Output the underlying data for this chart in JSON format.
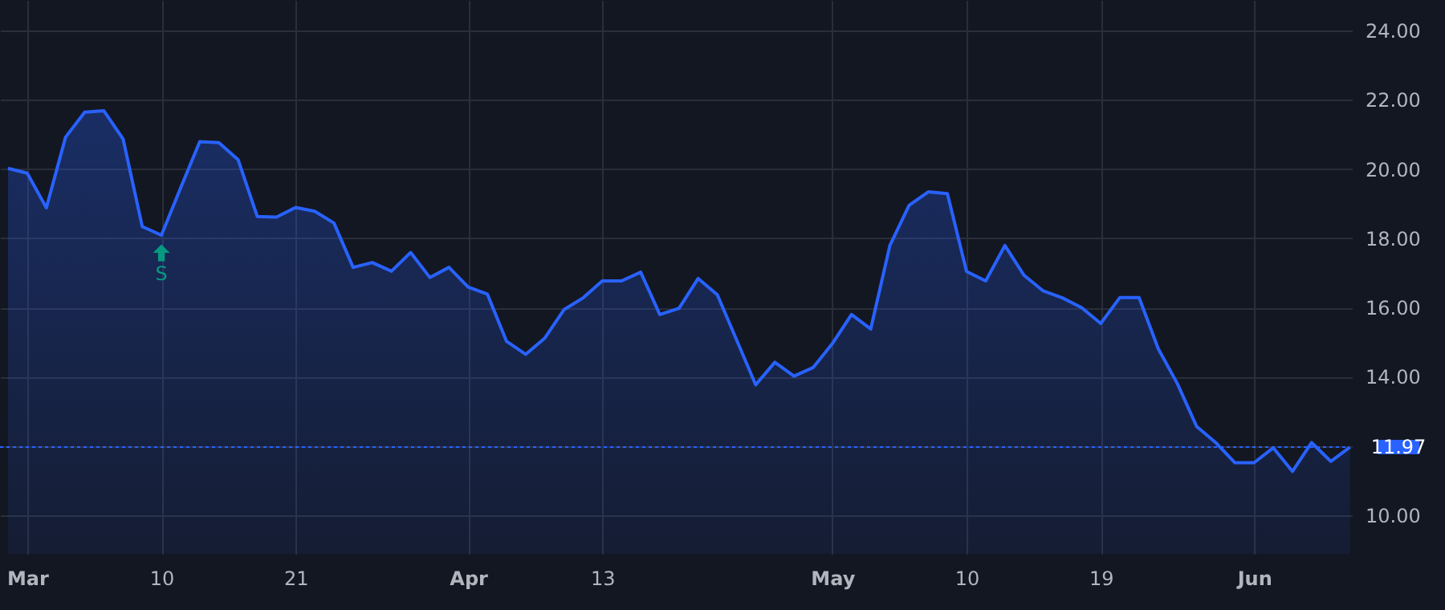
{
  "chart_data": {
    "type": "area",
    "categories": [
      null,
      "Mar",
      null,
      null,
      null,
      null,
      null,
      null,
      "10",
      null,
      null,
      null,
      null,
      null,
      null,
      "21",
      null,
      null,
      null,
      null,
      null,
      null,
      null,
      null,
      "Apr",
      null,
      null,
      null,
      null,
      null,
      null,
      "13",
      null,
      null,
      null,
      null,
      null,
      null,
      null,
      null,
      null,
      null,
      null,
      "May",
      null,
      null,
      null,
      null,
      null,
      null,
      "10",
      null,
      null,
      null,
      null,
      null,
      null,
      "19",
      null,
      null,
      null,
      null,
      null,
      null,
      null,
      "Jun",
      null,
      null,
      null,
      null,
      null
    ],
    "series": [
      {
        "color": "#2962ff",
        "values": [
          20.02,
          19.88,
          18.88,
          20.92,
          21.64,
          21.68,
          20.87,
          18.34,
          18.09,
          19.45,
          20.79,
          20.76,
          20.27,
          18.63,
          18.61,
          18.89,
          18.78,
          18.44,
          17.16,
          17.3,
          17.05,
          17.59,
          16.87,
          17.16,
          16.59,
          16.39,
          15.03,
          14.65,
          15.12,
          15.94,
          16.28,
          16.77,
          16.77,
          17.02,
          15.8,
          15.98,
          16.84,
          16.37,
          15.07,
          13.77,
          14.42,
          14.02,
          14.27,
          14.96,
          15.8,
          15.38,
          17.79,
          18.95,
          19.34,
          19.29,
          17.04,
          16.77,
          17.79,
          16.93,
          16.48,
          16.28,
          16.0,
          15.54,
          16.29,
          16.29,
          14.81,
          13.8,
          12.57,
          12.1,
          11.52,
          11.52,
          11.95,
          11.27,
          12.1,
          11.56,
          11.97
        ]
      }
    ],
    "ylim": [
      8.89,
      24.88
    ],
    "yticks": [
      {
        "value": 10,
        "label": "10.00"
      },
      {
        "value": 12,
        "label": null
      },
      {
        "value": 14,
        "label": "14.00"
      },
      {
        "value": 16,
        "label": "16.00"
      },
      {
        "value": 18,
        "label": "18.00"
      },
      {
        "value": 20,
        "label": "20.00"
      },
      {
        "value": 22,
        "label": "22.00"
      },
      {
        "value": 24,
        "label": "24.00"
      }
    ],
    "grid": true,
    "ref_lines": [
      {
        "axis": "y",
        "value": 11.97,
        "label": "11.97",
        "color": "#2962ff",
        "line_style": "dotted"
      }
    ],
    "annotations": [
      {
        "text": "S",
        "x": "10",
        "y": 18.09
      }
    ]
  }
}
